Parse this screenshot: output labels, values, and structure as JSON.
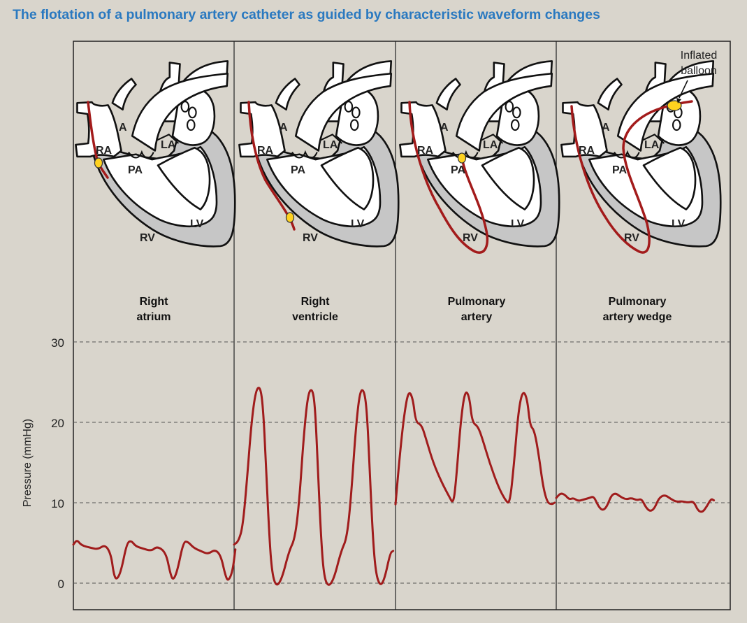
{
  "title": "The flotation of a pulmonary artery catheter as guided by characteristic waveform changes",
  "heart_labels": {
    "ra": "RA",
    "a": "A",
    "la": "LA",
    "pa": "PA",
    "rv": "RV",
    "lv": "LV"
  },
  "panels": [
    {
      "title_line1": "Right",
      "title_line2": "atrium"
    },
    {
      "title_line1": "Right",
      "title_line2": "ventricle"
    },
    {
      "title_line1": "Pulmonary",
      "title_line2": "artery"
    },
    {
      "title_line1": "Pulmonary",
      "title_line2": "artery wedge"
    }
  ],
  "annotation": {
    "line1": "Inflated",
    "line2": "balloon"
  },
  "chart_data": {
    "type": "line",
    "ylabel": "Pressure  (mmHg)",
    "ylim": [
      0,
      30
    ],
    "yticks": [
      "0",
      "10",
      "20",
      "30"
    ],
    "ytick_values": [
      0,
      10,
      20,
      30
    ],
    "grid": "dashed horizontal",
    "series": [
      {
        "points": [
          [
            0,
            4.8
          ],
          [
            0.25,
            5.4
          ],
          [
            0.55,
            4.7
          ],
          [
            1.2,
            4.4
          ],
          [
            1.7,
            4.2
          ],
          [
            2.2,
            4.8
          ],
          [
            2.6,
            3.6
          ],
          [
            2.8,
            1
          ],
          [
            3.0,
            0.4
          ],
          [
            3.3,
            1.5
          ],
          [
            3.7,
            5.0
          ],
          [
            4.0,
            5.3
          ],
          [
            4.3,
            4.6
          ],
          [
            4.8,
            4.3
          ],
          [
            5.4,
            4.0
          ],
          [
            5.8,
            4.6
          ],
          [
            6.4,
            3.8
          ],
          [
            6.7,
            1.2
          ],
          [
            6.9,
            0.3
          ],
          [
            7.2,
            1.6
          ],
          [
            7.6,
            5.1
          ],
          [
            7.9,
            5.2
          ],
          [
            8.3,
            4.4
          ],
          [
            8.8,
            4.0
          ],
          [
            9.3,
            3.6
          ],
          [
            9.8,
            4.2
          ],
          [
            10.2,
            3.4
          ],
          [
            10.5,
            1.0
          ],
          [
            10.7,
            0.2
          ],
          [
            11.0,
            1.4
          ],
          [
            11.2,
            4.2
          ]
        ]
      },
      {
        "points": [
          [
            0,
            4.8
          ],
          [
            0.3,
            5.2
          ],
          [
            0.6,
            7
          ],
          [
            0.9,
            13
          ],
          [
            1.2,
            20
          ],
          [
            1.5,
            24
          ],
          [
            1.8,
            24.5
          ],
          [
            2.0,
            22
          ],
          [
            2.2,
            15
          ],
          [
            2.4,
            7
          ],
          [
            2.6,
            1.5
          ],
          [
            2.9,
            -0.5
          ],
          [
            3.3,
            0.5
          ],
          [
            3.8,
            4
          ],
          [
            4.2,
            5.5
          ],
          [
            4.5,
            10
          ],
          [
            4.8,
            18
          ],
          [
            5.1,
            23.5
          ],
          [
            5.4,
            24.3
          ],
          [
            5.6,
            22
          ],
          [
            5.8,
            14
          ],
          [
            6.0,
            6
          ],
          [
            6.2,
            1
          ],
          [
            6.5,
            -0.5
          ],
          [
            6.9,
            0.5
          ],
          [
            7.4,
            4
          ],
          [
            7.8,
            5.6
          ],
          [
            8.1,
            11
          ],
          [
            8.4,
            19
          ],
          [
            8.7,
            24
          ],
          [
            9.0,
            24
          ],
          [
            9.2,
            21
          ],
          [
            9.4,
            13
          ],
          [
            9.6,
            5.5
          ],
          [
            9.8,
            1.2
          ],
          [
            10.1,
            -0.4
          ],
          [
            10.4,
            0.5
          ],
          [
            10.8,
            3.8
          ],
          [
            11.0,
            4.0
          ]
        ]
      },
      {
        "points": [
          [
            0,
            9.8
          ],
          [
            0.3,
            16
          ],
          [
            0.6,
            21
          ],
          [
            0.9,
            24
          ],
          [
            1.2,
            23
          ],
          [
            1.4,
            20
          ],
          [
            1.8,
            19.7
          ],
          [
            2.1,
            18
          ],
          [
            2.6,
            15
          ],
          [
            3.2,
            12.5
          ],
          [
            3.7,
            10.8
          ],
          [
            4.0,
            9.8
          ],
          [
            4.2,
            13
          ],
          [
            4.5,
            20
          ],
          [
            4.8,
            24
          ],
          [
            5.1,
            23.3
          ],
          [
            5.3,
            20
          ],
          [
            5.7,
            19.5
          ],
          [
            6.0,
            18
          ],
          [
            6.5,
            15
          ],
          [
            7.1,
            12
          ],
          [
            7.6,
            10.3
          ],
          [
            7.9,
            9.8
          ],
          [
            8.2,
            15
          ],
          [
            8.5,
            21.5
          ],
          [
            8.8,
            24
          ],
          [
            9.1,
            23
          ],
          [
            9.3,
            19.6
          ],
          [
            9.6,
            19
          ],
          [
            9.9,
            16
          ],
          [
            10.2,
            12
          ],
          [
            10.5,
            10
          ],
          [
            10.8,
            9.8
          ],
          [
            11.0,
            10
          ]
        ]
      },
      {
        "points": [
          [
            0,
            10.6
          ],
          [
            0.3,
            11.2
          ],
          [
            0.6,
            11.0
          ],
          [
            0.9,
            10.4
          ],
          [
            1.2,
            10.6
          ],
          [
            1.5,
            10.2
          ],
          [
            1.9,
            10.4
          ],
          [
            2.3,
            10.6
          ],
          [
            2.6,
            10.8
          ],
          [
            2.9,
            9.6
          ],
          [
            3.2,
            9.0
          ],
          [
            3.5,
            9.5
          ],
          [
            3.8,
            10.9
          ],
          [
            4.1,
            11.2
          ],
          [
            4.4,
            10.8
          ],
          [
            4.8,
            10.4
          ],
          [
            5.2,
            10.6
          ],
          [
            5.6,
            10.3
          ],
          [
            5.9,
            10.5
          ],
          [
            6.2,
            9.4
          ],
          [
            6.5,
            8.9
          ],
          [
            6.8,
            9.3
          ],
          [
            7.1,
            10.6
          ],
          [
            7.5,
            11.0
          ],
          [
            7.9,
            10.5
          ],
          [
            8.3,
            10.1
          ],
          [
            8.7,
            10.2
          ],
          [
            9.1,
            10.0
          ],
          [
            9.5,
            10.2
          ],
          [
            9.8,
            9.0
          ],
          [
            10.1,
            8.8
          ],
          [
            10.4,
            9.5
          ],
          [
            10.7,
            10.5
          ],
          [
            10.9,
            10.3
          ]
        ]
      }
    ]
  }
}
